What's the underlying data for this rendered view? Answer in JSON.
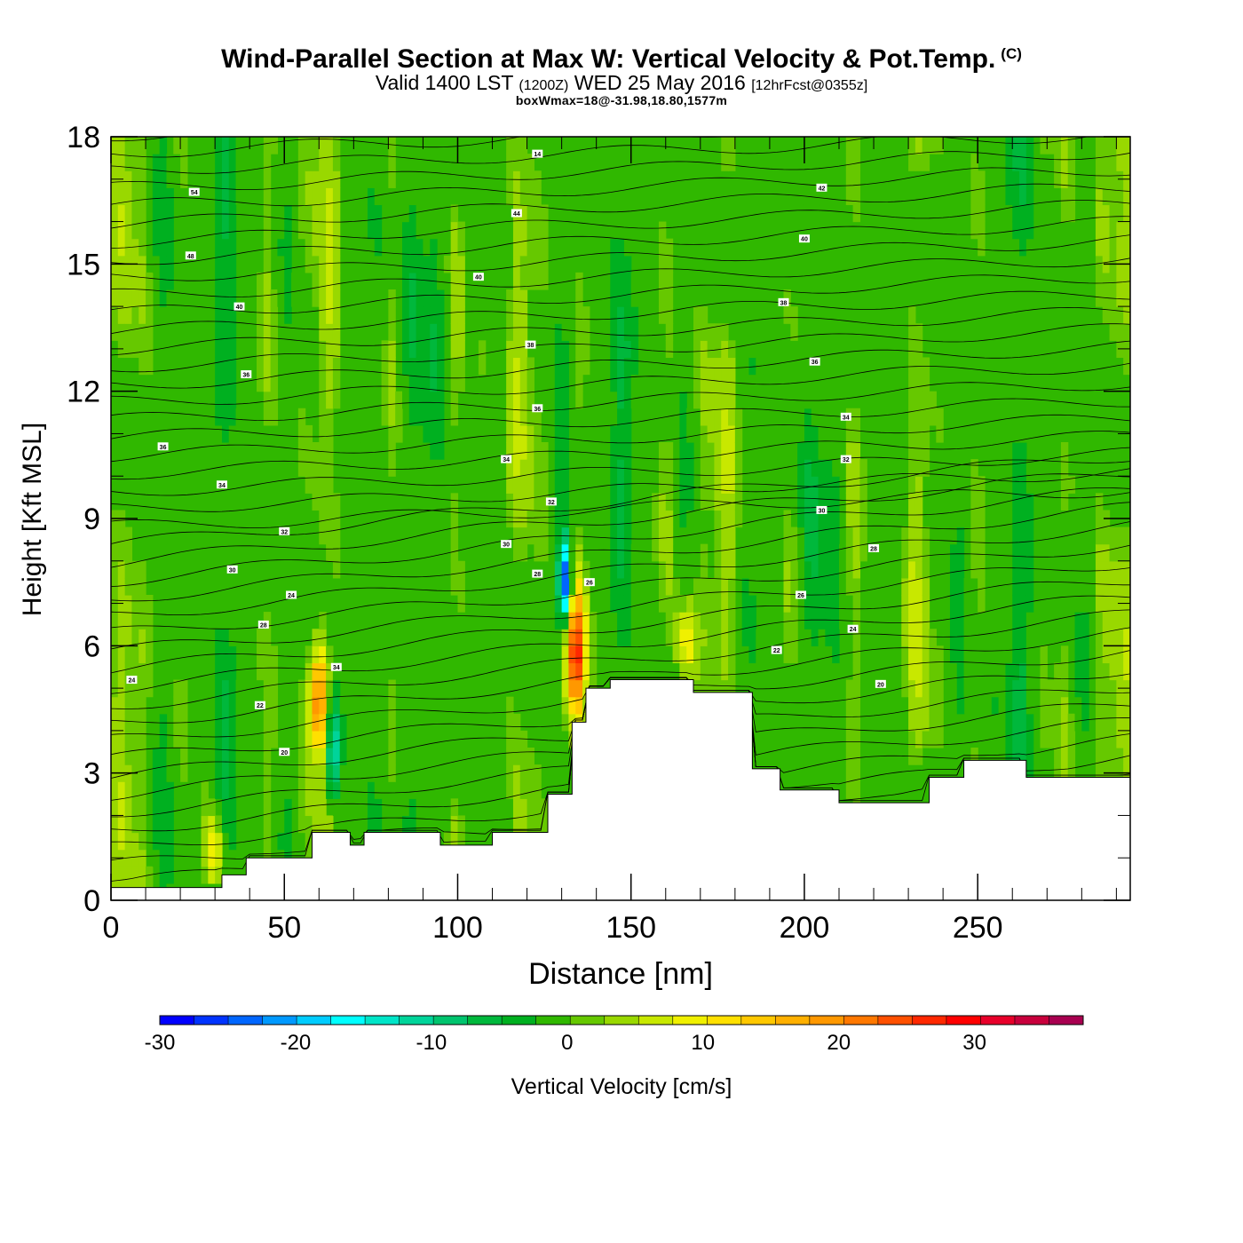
{
  "header": {
    "title": "Wind-Parallel Section at Max W: Vertical Velocity & Pot.Temp.",
    "title_mark": "(C)",
    "subtitle_main": "Valid 1400 LST",
    "subtitle_utc": "(1200Z)",
    "subtitle_date": "WED 25 May 2016",
    "subtitle_forecast": "[12hrFcst@0355z]",
    "box_info": "boxWmax=18@-31.98,18.80,1577m"
  },
  "chart_data": {
    "type": "heatmap",
    "xlabel": "Distance [nm]",
    "ylabel": "Height [Kft MSL]",
    "xlim": [
      0,
      294
    ],
    "ylim": [
      0,
      18
    ],
    "x_ticks": [
      "0",
      "50",
      "100",
      "150",
      "200",
      "250"
    ],
    "x_tick_values": [
      0,
      50,
      100,
      150,
      200,
      250
    ],
    "y_ticks": [
      "0",
      "3",
      "6",
      "9",
      "12",
      "15",
      "18"
    ],
    "y_tick_values": [
      0,
      3,
      6,
      9,
      12,
      15,
      18
    ],
    "terrain": {
      "x": [
        0,
        32,
        32,
        39,
        39,
        58,
        58,
        69,
        69,
        73,
        73,
        95,
        95,
        110,
        110,
        126,
        126,
        133,
        133,
        137,
        137,
        144,
        144,
        168,
        168,
        185,
        185,
        193,
        193,
        210,
        210,
        236,
        236,
        246,
        246,
        264,
        264,
        294
      ],
      "y": [
        0.3,
        0.3,
        0.6,
        0.6,
        1.0,
        1.0,
        1.6,
        1.6,
        1.3,
        1.3,
        1.6,
        1.6,
        1.3,
        1.3,
        1.6,
        1.6,
        2.5,
        2.5,
        4.2,
        4.2,
        5.0,
        5.0,
        5.2,
        5.2,
        4.9,
        4.9,
        3.1,
        3.1,
        2.6,
        2.6,
        2.3,
        2.3,
        2.9,
        2.9,
        3.3,
        3.3,
        2.9,
        2.9
      ]
    },
    "updraft_cores": [
      {
        "x": 60,
        "y_bottom": 3.5,
        "y_top": 6.0,
        "w_max": 20
      },
      {
        "x": 134,
        "y_bottom": 4.2,
        "y_top": 7.5,
        "w_max": 28
      },
      {
        "x": 166,
        "y_bottom": 5.2,
        "y_top": 7.0,
        "w_max": 10
      },
      {
        "x": 30,
        "y_bottom": 0.3,
        "y_top": 2.0,
        "w_max": 12
      }
    ],
    "downdraft_cores": [
      {
        "x": 64,
        "y_bottom": 2.0,
        "y_top": 5.0,
        "w_min": -18
      },
      {
        "x": 131,
        "y_bottom": 6.5,
        "y_top": 8.5,
        "w_min": -28
      }
    ],
    "theta_labels": [
      {
        "x": 24,
        "y": 16.7,
        "text": "54"
      },
      {
        "x": 23,
        "y": 15.2,
        "text": "48"
      },
      {
        "x": 37,
        "y": 14.0,
        "text": "40"
      },
      {
        "x": 39,
        "y": 12.4,
        "text": "36"
      },
      {
        "x": 15,
        "y": 10.7,
        "text": "36"
      },
      {
        "x": 32,
        "y": 9.8,
        "text": "34"
      },
      {
        "x": 50,
        "y": 8.7,
        "text": "32"
      },
      {
        "x": 35,
        "y": 7.8,
        "text": "30"
      },
      {
        "x": 52,
        "y": 7.2,
        "text": "24"
      },
      {
        "x": 44,
        "y": 6.5,
        "text": "28"
      },
      {
        "x": 6,
        "y": 5.2,
        "text": "24"
      },
      {
        "x": 65,
        "y": 5.5,
        "text": "34"
      },
      {
        "x": 43,
        "y": 4.6,
        "text": "22"
      },
      {
        "x": 50,
        "y": 3.5,
        "text": "20"
      },
      {
        "x": 123,
        "y": 17.6,
        "text": "14"
      },
      {
        "x": 117,
        "y": 16.2,
        "text": "44"
      },
      {
        "x": 106,
        "y": 14.7,
        "text": "40"
      },
      {
        "x": 121,
        "y": 13.1,
        "text": "38"
      },
      {
        "x": 123,
        "y": 11.6,
        "text": "36"
      },
      {
        "x": 114,
        "y": 10.4,
        "text": "34"
      },
      {
        "x": 127,
        "y": 9.4,
        "text": "32"
      },
      {
        "x": 114,
        "y": 8.4,
        "text": "30"
      },
      {
        "x": 123,
        "y": 7.7,
        "text": "28"
      },
      {
        "x": 138,
        "y": 7.5,
        "text": "26"
      },
      {
        "x": 205,
        "y": 16.8,
        "text": "42"
      },
      {
        "x": 200,
        "y": 15.6,
        "text": "40"
      },
      {
        "x": 194,
        "y": 14.1,
        "text": "38"
      },
      {
        "x": 203,
        "y": 12.7,
        "text": "36"
      },
      {
        "x": 212,
        "y": 11.4,
        "text": "34"
      },
      {
        "x": 212,
        "y": 10.4,
        "text": "32"
      },
      {
        "x": 205,
        "y": 9.2,
        "text": "30"
      },
      {
        "x": 220,
        "y": 8.3,
        "text": "28"
      },
      {
        "x": 199,
        "y": 7.2,
        "text": "26"
      },
      {
        "x": 214,
        "y": 6.4,
        "text": "24"
      },
      {
        "x": 192,
        "y": 5.9,
        "text": "22"
      },
      {
        "x": 222,
        "y": 5.1,
        "text": "20"
      }
    ],
    "colorbar": {
      "label": "Vertical Velocity [cm/s]",
      "min": -30,
      "max": 38,
      "tick_labels": [
        "-30",
        "-20",
        "-10",
        "0",
        "10",
        "20",
        "30"
      ],
      "tick_values": [
        -30,
        -20,
        -10,
        0,
        10,
        20,
        30
      ],
      "colors": [
        "#0000ff",
        "#0033ff",
        "#0066ff",
        "#0099ff",
        "#00ccff",
        "#00ffff",
        "#00e5c8",
        "#00d49a",
        "#00c46e",
        "#00b83c",
        "#00b020",
        "#30b800",
        "#66c800",
        "#99d800",
        "#c8e800",
        "#f0f000",
        "#ffe000",
        "#ffc800",
        "#ffb000",
        "#ff9800",
        "#ff7800",
        "#ff5000",
        "#ff2800",
        "#ff0000",
        "#e8002a",
        "#c8003c",
        "#a80050"
      ]
    },
    "grid": false
  }
}
